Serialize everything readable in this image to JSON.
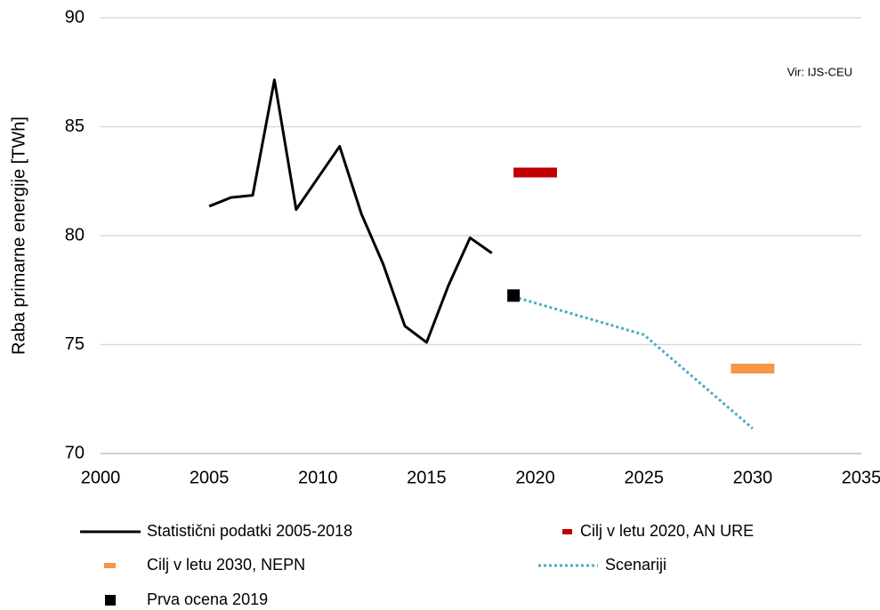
{
  "chart_data": {
    "type": "line",
    "y_label": "Raba primarne energije [TWh]",
    "annotation": "Vir: IJS-CEU",
    "xlim": [
      2000,
      2035
    ],
    "xticks": [
      2000,
      2005,
      2010,
      2015,
      2020,
      2025,
      2030,
      2035
    ],
    "ylim": [
      70,
      90
    ],
    "yticks": [
      70,
      75,
      80,
      85,
      90
    ],
    "grid": true,
    "series": [
      {
        "name": "Statistični podatki 2005-2018",
        "color": "#000000",
        "style": "line",
        "x": [
          2005,
          2006,
          2007,
          2008,
          2009,
          2010,
          2011,
          2012,
          2013,
          2014,
          2015,
          2016,
          2017,
          2018
        ],
        "values": [
          81.35,
          81.75,
          81.85,
          87.15,
          81.2,
          82.65,
          84.1,
          81.0,
          78.7,
          75.85,
          75.1,
          77.7,
          79.9,
          79.2
        ]
      },
      {
        "name": "Cilj v letu 2020, AN URE",
        "color": "#c00000",
        "style": "bar",
        "x": [
          2019,
          2021
        ],
        "values": [
          82.9,
          82.9
        ]
      },
      {
        "name": "Cilj v letu 2030, NEPN",
        "color": "#f79646",
        "style": "bar",
        "x": [
          2029,
          2031
        ],
        "values": [
          73.9,
          73.9
        ]
      },
      {
        "name": "Scenariji",
        "color": "#4bacc6",
        "style": "dotted",
        "x": [
          2019,
          2025,
          2030
        ],
        "values": [
          77.2,
          75.45,
          71.15
        ]
      },
      {
        "name": "Prva ocena 2019",
        "color": "#000000",
        "style": "marker",
        "x": [
          2019
        ],
        "values": [
          77.25
        ]
      }
    ]
  }
}
